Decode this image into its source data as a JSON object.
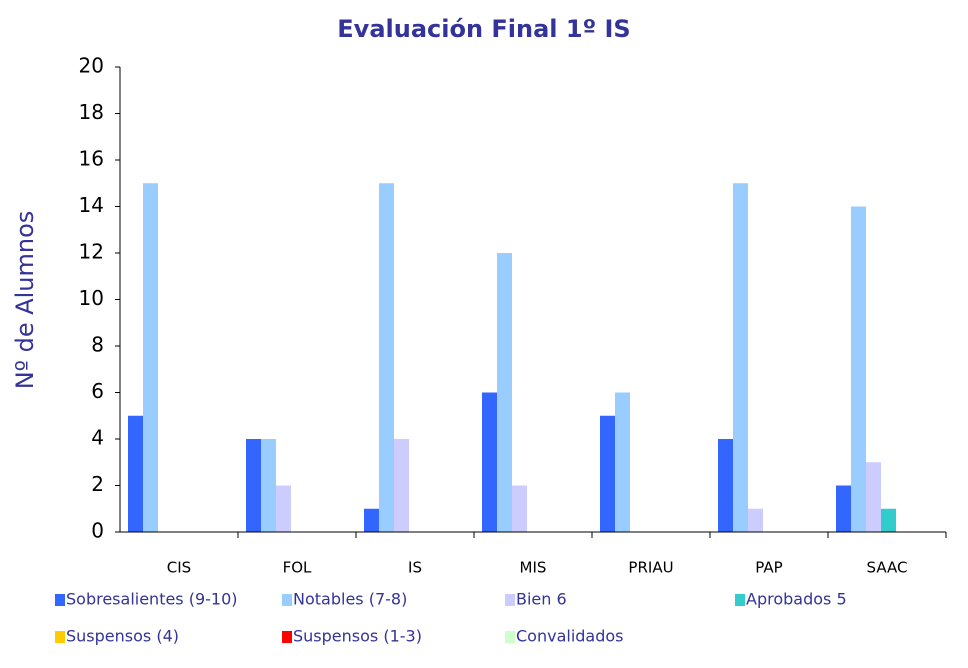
{
  "chart_data": {
    "type": "bar",
    "title": "Evaluación Final 1º IS",
    "ylabel": "Nº de Alumnos",
    "categories": [
      "CIS",
      "FOL",
      "IS",
      "MIS",
      "PRIAU",
      "PAP",
      "SAAC"
    ],
    "series": [
      {
        "name": "Sobresalientes (9-10)",
        "color": "#3366ff",
        "values": [
          5,
          4,
          1,
          6,
          5,
          4,
          2
        ]
      },
      {
        "name": "Notables (7-8)",
        "color": "#99ccff",
        "values": [
          15,
          4,
          15,
          12,
          6,
          15,
          14
        ]
      },
      {
        "name": "Bien 6",
        "color": "#ccccff",
        "values": [
          0,
          2,
          4,
          2,
          0,
          1,
          3
        ]
      },
      {
        "name": "Aprobados 5",
        "color": "#33cccc",
        "values": [
          0,
          0,
          0,
          0,
          0,
          0,
          1
        ]
      },
      {
        "name": "Suspensos (4)",
        "color": "#ffcc00",
        "values": [
          0,
          0,
          0,
          0,
          0,
          0,
          0
        ]
      },
      {
        "name": "Suspensos (1-3)",
        "color": "#ff0000",
        "values": [
          0,
          0,
          0,
          0,
          0,
          0,
          0
        ]
      },
      {
        "name": "Convalidados",
        "color": "#ccffcc",
        "values": [
          0,
          0,
          0,
          0,
          0,
          0,
          0
        ]
      }
    ],
    "ylim": [
      0,
      20
    ],
    "yticks": [
      0,
      2,
      4,
      6,
      8,
      10,
      12,
      14,
      16,
      18,
      20
    ],
    "grid": false,
    "legend": "bottom"
  }
}
